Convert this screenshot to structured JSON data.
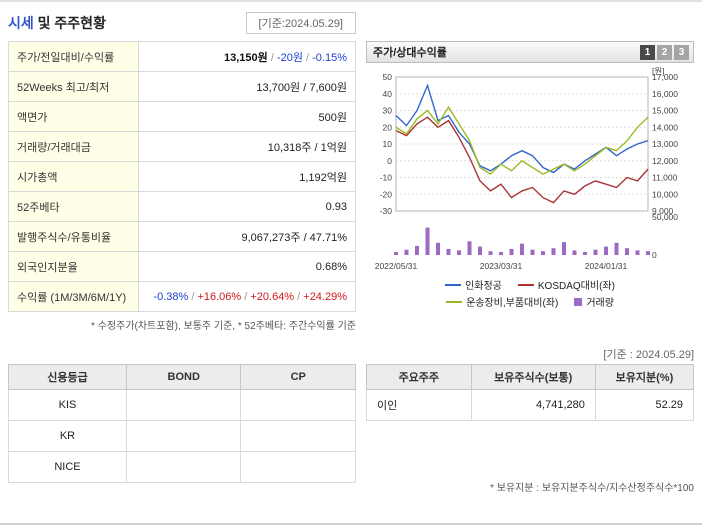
{
  "page": {
    "title_blue": "시세",
    "title_rest": " 및 주주현황",
    "ref_date_left": "[기준:2024.05.29]",
    "ref_date_right": "[기준 : 2024.05.29]"
  },
  "quote_table": {
    "rows": [
      {
        "label": "주가/전일대비/수익률",
        "parts": [
          {
            "t": "13,150원",
            "c": "b"
          },
          {
            "t": " / ",
            "c": "sep"
          },
          {
            "t": "-20원",
            "c": "dn"
          },
          {
            "t": " / ",
            "c": "sep"
          },
          {
            "t": "-0.15%",
            "c": "dn"
          }
        ]
      },
      {
        "label": "52Weeks 최고/최저",
        "parts": [
          {
            "t": "13,700원 / 7,600원",
            "c": ""
          }
        ]
      },
      {
        "label": "액면가",
        "parts": [
          {
            "t": "500원",
            "c": ""
          }
        ]
      },
      {
        "label": "거래량/거래대금",
        "parts": [
          {
            "t": "10,318주 / 1억원",
            "c": ""
          }
        ]
      },
      {
        "label": "시가총액",
        "parts": [
          {
            "t": "1,192억원",
            "c": ""
          }
        ]
      },
      {
        "label": "52주베타",
        "parts": [
          {
            "t": "0.93",
            "c": ""
          }
        ]
      },
      {
        "label": "발행주식수/유통비율",
        "parts": [
          {
            "t": "9,067,273주 / 47.71%",
            "c": ""
          }
        ]
      },
      {
        "label": "외국인지분율",
        "parts": [
          {
            "t": "0.68%",
            "c": ""
          }
        ]
      },
      {
        "label": "수익률 (1M/3M/6M/1Y)",
        "parts": [
          {
            "t": "-0.38%",
            "c": "dn"
          },
          {
            "t": " / ",
            "c": "sep"
          },
          {
            "t": "+16.06%",
            "c": "up"
          },
          {
            "t": " / ",
            "c": "sep"
          },
          {
            "t": "+20.64%",
            "c": "up"
          },
          {
            "t": " / ",
            "c": "sep"
          },
          {
            "t": "+24.29%",
            "c": "up"
          }
        ]
      }
    ],
    "footnote": "* 수정주가(차트포함), 보통주 기준, * 52주베타: 주간수익률 기준"
  },
  "chart_panel": {
    "title": "주가/상대수익률",
    "buttons": [
      "1",
      "2",
      "3"
    ],
    "active_button": "1"
  },
  "chart_data": {
    "type": "line",
    "title": "주가/상대수익률",
    "x_count": 25,
    "x_ticks": [
      {
        "index": 0,
        "label": "2022/05/31"
      },
      {
        "index": 10,
        "label": "2023/03/31"
      },
      {
        "index": 20,
        "label": "2024/01/31"
      }
    ],
    "left_axis": {
      "min": -30,
      "max": 50,
      "step": 10,
      "unit": "%"
    },
    "right_axis": {
      "min": 9000,
      "max": 17000,
      "step": 1000,
      "unit": "[원]"
    },
    "volume_axis": {
      "min": 0,
      "max": 50000
    },
    "series": [
      {
        "name": "인화정공",
        "axis": "right",
        "color": "#3366cc",
        "type": "line",
        "values": [
          14700,
          14100,
          15000,
          16500,
          14400,
          14700,
          13700,
          13000,
          11700,
          11400,
          11800,
          12300,
          12600,
          12300,
          11600,
          11300,
          11800,
          11500,
          12000,
          12400,
          12800,
          12300,
          12700,
          13000,
          13200
        ]
      },
      {
        "name": "KOSDAQ대비(좌)",
        "axis": "left",
        "color": "#aa3333",
        "type": "line",
        "values": [
          18,
          15,
          22,
          26,
          20,
          24,
          14,
          2,
          -12,
          -18,
          -14,
          -22,
          -18,
          -16,
          -22,
          -25,
          -18,
          -20,
          -15,
          -12,
          -14,
          -16,
          -10,
          -12,
          -5
        ]
      },
      {
        "name": "운송장비,부품대비(좌)",
        "axis": "left",
        "color": "#99bb22",
        "type": "line",
        "values": [
          20,
          16,
          25,
          30,
          22,
          32,
          22,
          12,
          -4,
          -8,
          -2,
          -6,
          0,
          -4,
          -8,
          -5,
          -2,
          -6,
          -2,
          3,
          8,
          6,
          12,
          20,
          26
        ]
      }
    ],
    "volume": {
      "name": "거래량",
      "color": "#9b6bc3",
      "values": [
        4000,
        7000,
        12000,
        36000,
        16000,
        8000,
        6000,
        18000,
        11000,
        5000,
        4000,
        8000,
        15000,
        7000,
        5000,
        9000,
        17000,
        6000,
        4000,
        7000,
        11000,
        16000,
        9000,
        6000,
        5000
      ]
    },
    "legend_rows": [
      [
        "인화정공",
        "KOSDAQ대비(좌)"
      ],
      [
        "운송장비,부품대비(좌)",
        "거래량"
      ]
    ]
  },
  "credit_table": {
    "headers": [
      "신용등급",
      "BOND",
      "CP"
    ],
    "rows": [
      [
        "KIS",
        "",
        ""
      ],
      [
        "KR",
        "",
        ""
      ],
      [
        "NICE",
        "",
        ""
      ]
    ]
  },
  "shareholder_table": {
    "headers": [
      "주요주주",
      "보유주식수(보통)",
      "보유지분(%)"
    ],
    "rows": [
      [
        "이인",
        "4,741,280",
        "52.29"
      ]
    ],
    "footnote": "* 보유지분 : 보유지분주식수/지수산정주식수*100"
  }
}
